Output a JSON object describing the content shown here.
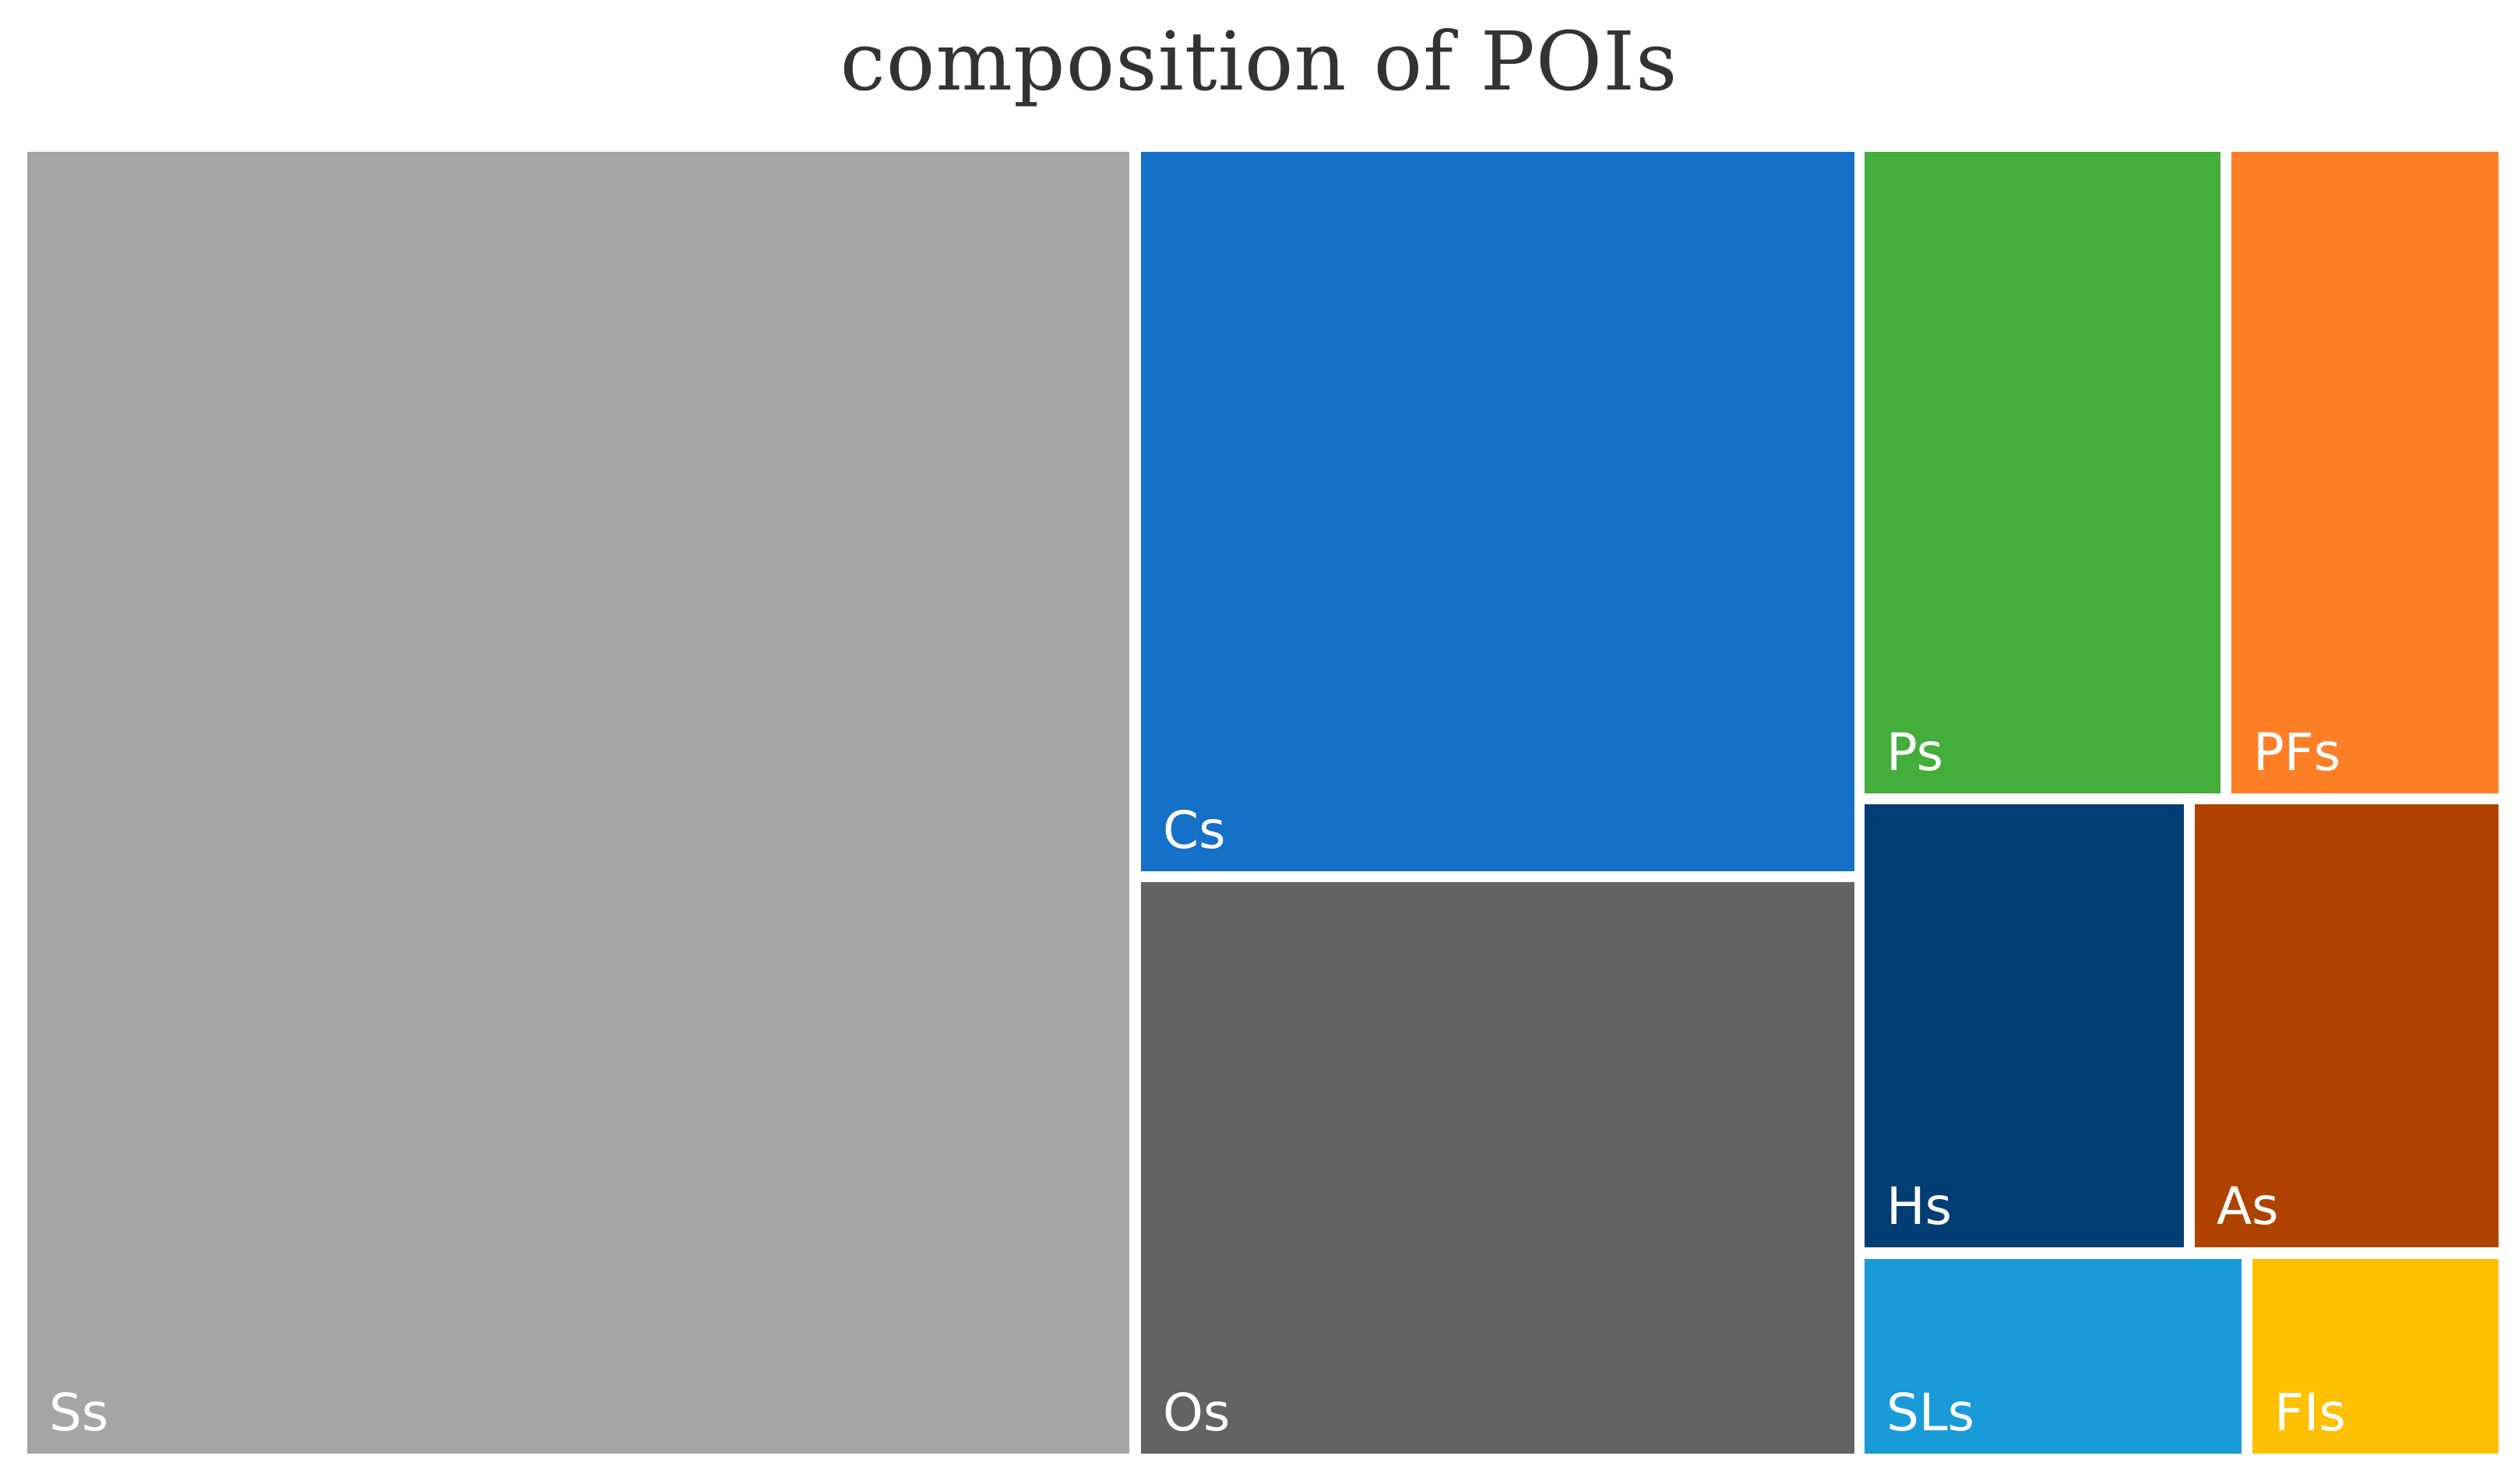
{
  "chart_data": {
    "type": "treemap",
    "title": "composition  of POIs",
    "items": [
      {
        "label": "Ss",
        "color": "#A5A5A5",
        "value": 4.44
      },
      {
        "label": "Cs",
        "color": "#1570C8",
        "value": 1.6
      },
      {
        "label": "Os",
        "color": "#636363",
        "value": 1.28
      },
      {
        "label": "Ps",
        "color": "#43AE3A",
        "value": 0.72
      },
      {
        "label": "PFs",
        "color": "#FF7F27",
        "value": 0.54
      },
      {
        "label": "Hs",
        "color": "#003E73",
        "value": 0.44
      },
      {
        "label": "As",
        "color": "#B04200",
        "value": 0.41
      },
      {
        "label": "SLs",
        "color": "#199BD7",
        "value": 0.28
      },
      {
        "label": "FIs",
        "color": "#FFC000",
        "value": 0.18
      }
    ]
  }
}
